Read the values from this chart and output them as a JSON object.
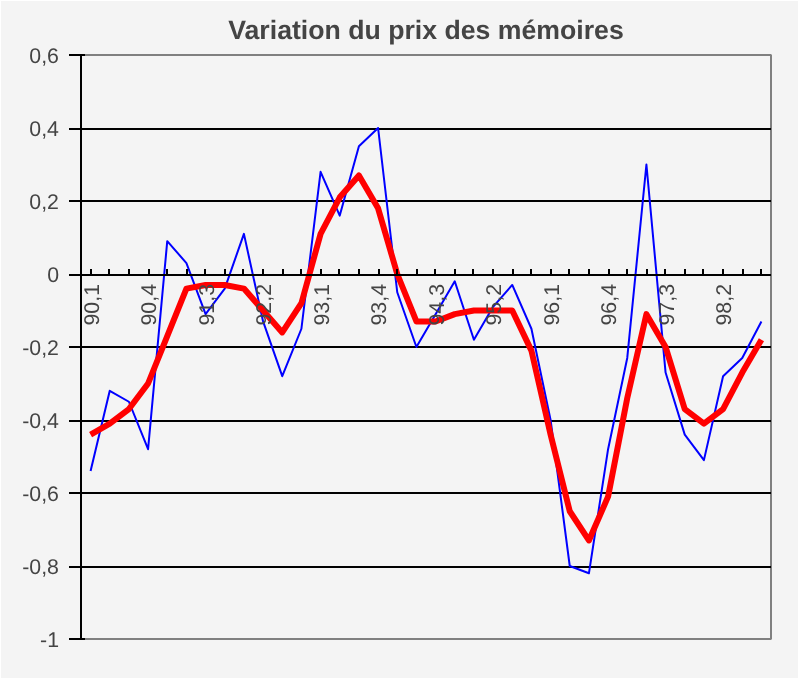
{
  "chart_data": {
    "type": "line",
    "title": "Variation du prix des mémoires",
    "categories": [
      "90,1",
      null,
      null,
      "90,4",
      null,
      null,
      "91,3",
      null,
      null,
      "92,2",
      null,
      null,
      "93,1",
      null,
      null,
      "93,4",
      null,
      null,
      "94,3",
      null,
      null,
      "95,2",
      null,
      null,
      "96,1",
      null,
      null,
      "96,4",
      null,
      null,
      "97,3",
      null,
      null,
      "98,2",
      null,
      null
    ],
    "series": [
      {
        "color": "#0000ff",
        "values": [
          -0.54,
          -0.32,
          -0.35,
          -0.48,
          0.09,
          0.03,
          -0.11,
          -0.04,
          0.11,
          -0.13,
          -0.28,
          -0.15,
          0.28,
          0.16,
          0.35,
          0.4,
          -0.05,
          -0.2,
          -0.11,
          -0.02,
          -0.18,
          -0.09,
          -0.03,
          -0.15,
          -0.4,
          -0.8,
          -0.82,
          -0.48,
          -0.23,
          0.3,
          -0.27,
          -0.44,
          -0.51,
          -0.28,
          -0.23,
          -0.13
        ]
      },
      {
        "color": "#ff0000",
        "values": [
          -0.44,
          -0.41,
          -0.37,
          -0.3,
          -0.17,
          -0.04,
          -0.03,
          -0.03,
          -0.04,
          -0.1,
          -0.16,
          -0.08,
          0.11,
          0.21,
          0.27,
          0.18,
          0.0,
          -0.13,
          -0.13,
          -0.11,
          -0.1,
          -0.1,
          -0.1,
          -0.21,
          -0.44,
          -0.65,
          -0.73,
          -0.61,
          -0.34,
          -0.11,
          -0.2,
          -0.37,
          -0.41,
          -0.37,
          -0.27,
          -0.18
        ]
      }
    ],
    "ylim": [
      -1,
      0.6
    ],
    "yticks": [
      {
        "value": -1,
        "label": "-1"
      },
      {
        "value": -0.8,
        "label": "-0,8"
      },
      {
        "value": -0.6,
        "label": "-0,6"
      },
      {
        "value": -0.4,
        "label": "-0,4"
      },
      {
        "value": -0.2,
        "label": "-0,2"
      },
      {
        "value": 0,
        "label": "0"
      },
      {
        "value": 0.2,
        "label": "0,2"
      },
      {
        "value": 0.4,
        "label": "0,4"
      },
      {
        "value": 0.6,
        "label": "0,6"
      }
    ],
    "grid": "y",
    "line_style": "solid",
    "marker": "none"
  }
}
